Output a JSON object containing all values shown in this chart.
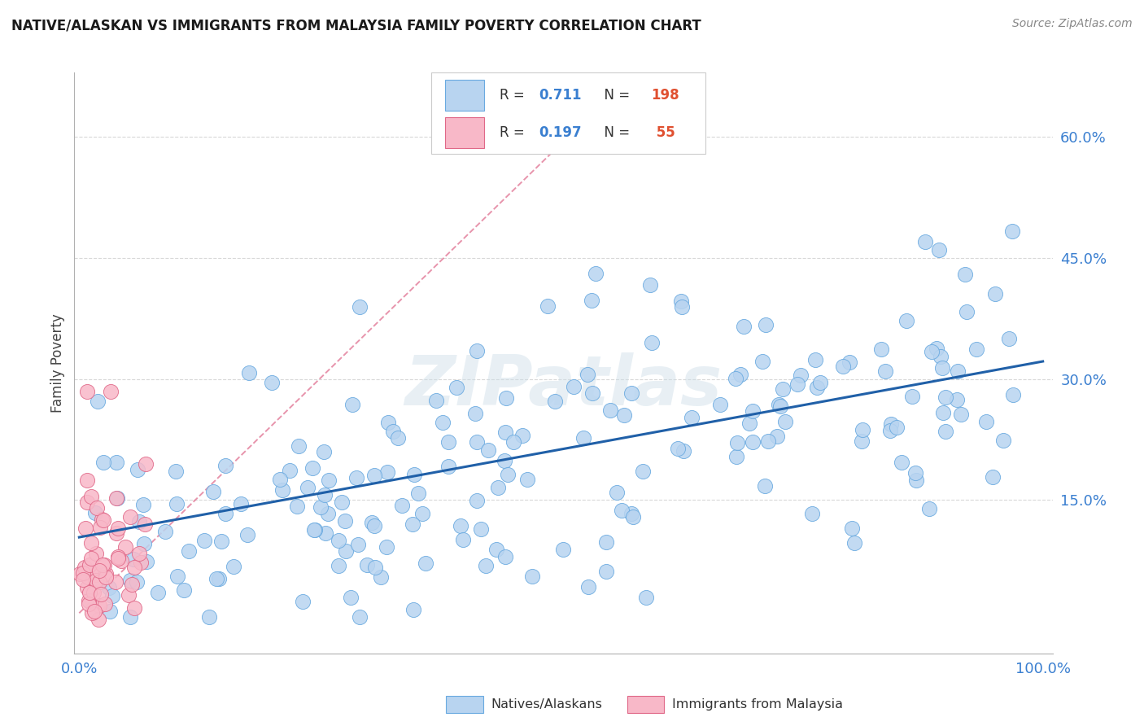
{
  "title": "NATIVE/ALASKAN VS IMMIGRANTS FROM MALAYSIA FAMILY POVERTY CORRELATION CHART",
  "source": "Source: ZipAtlas.com",
  "ylabel": "Family Poverty",
  "ytick_labels": [
    "15.0%",
    "30.0%",
    "45.0%",
    "60.0%"
  ],
  "ytick_values": [
    0.15,
    0.3,
    0.45,
    0.6
  ],
  "xtick_labels": [
    "0.0%",
    "100.0%"
  ],
  "xtick_values": [
    0.0,
    1.0
  ],
  "xlim": [
    -0.005,
    1.01
  ],
  "ylim": [
    -0.04,
    0.68
  ],
  "blue_face_color": "#b8d4f0",
  "blue_edge_color": "#6aaae0",
  "pink_face_color": "#f8b8c8",
  "pink_edge_color": "#e06888",
  "blue_line_color": "#2060a8",
  "pink_line_color": "#e07090",
  "diag_line_color": "#d0d0d0",
  "grid_color": "#d8d8d8",
  "watermark_color": "#ccdde8",
  "blue_R": 0.711,
  "blue_N": 198,
  "pink_R": 0.197,
  "pink_N": 55,
  "blue_line_x0": 0.0,
  "blue_line_y0": 0.104,
  "blue_line_x1": 1.0,
  "blue_line_y1": 0.322,
  "pink_line_x0": 0.0,
  "pink_line_y0": 0.01,
  "pink_line_x1": 0.55,
  "pink_line_y1": 0.65,
  "legend_R_color": "#3a7fd0",
  "legend_N_color": "#e05030",
  "legend_text_color": "#333333",
  "title_color": "#1a1a1a",
  "source_color": "#888888",
  "tick_color": "#3a7fd0",
  "ylabel_color": "#444444"
}
